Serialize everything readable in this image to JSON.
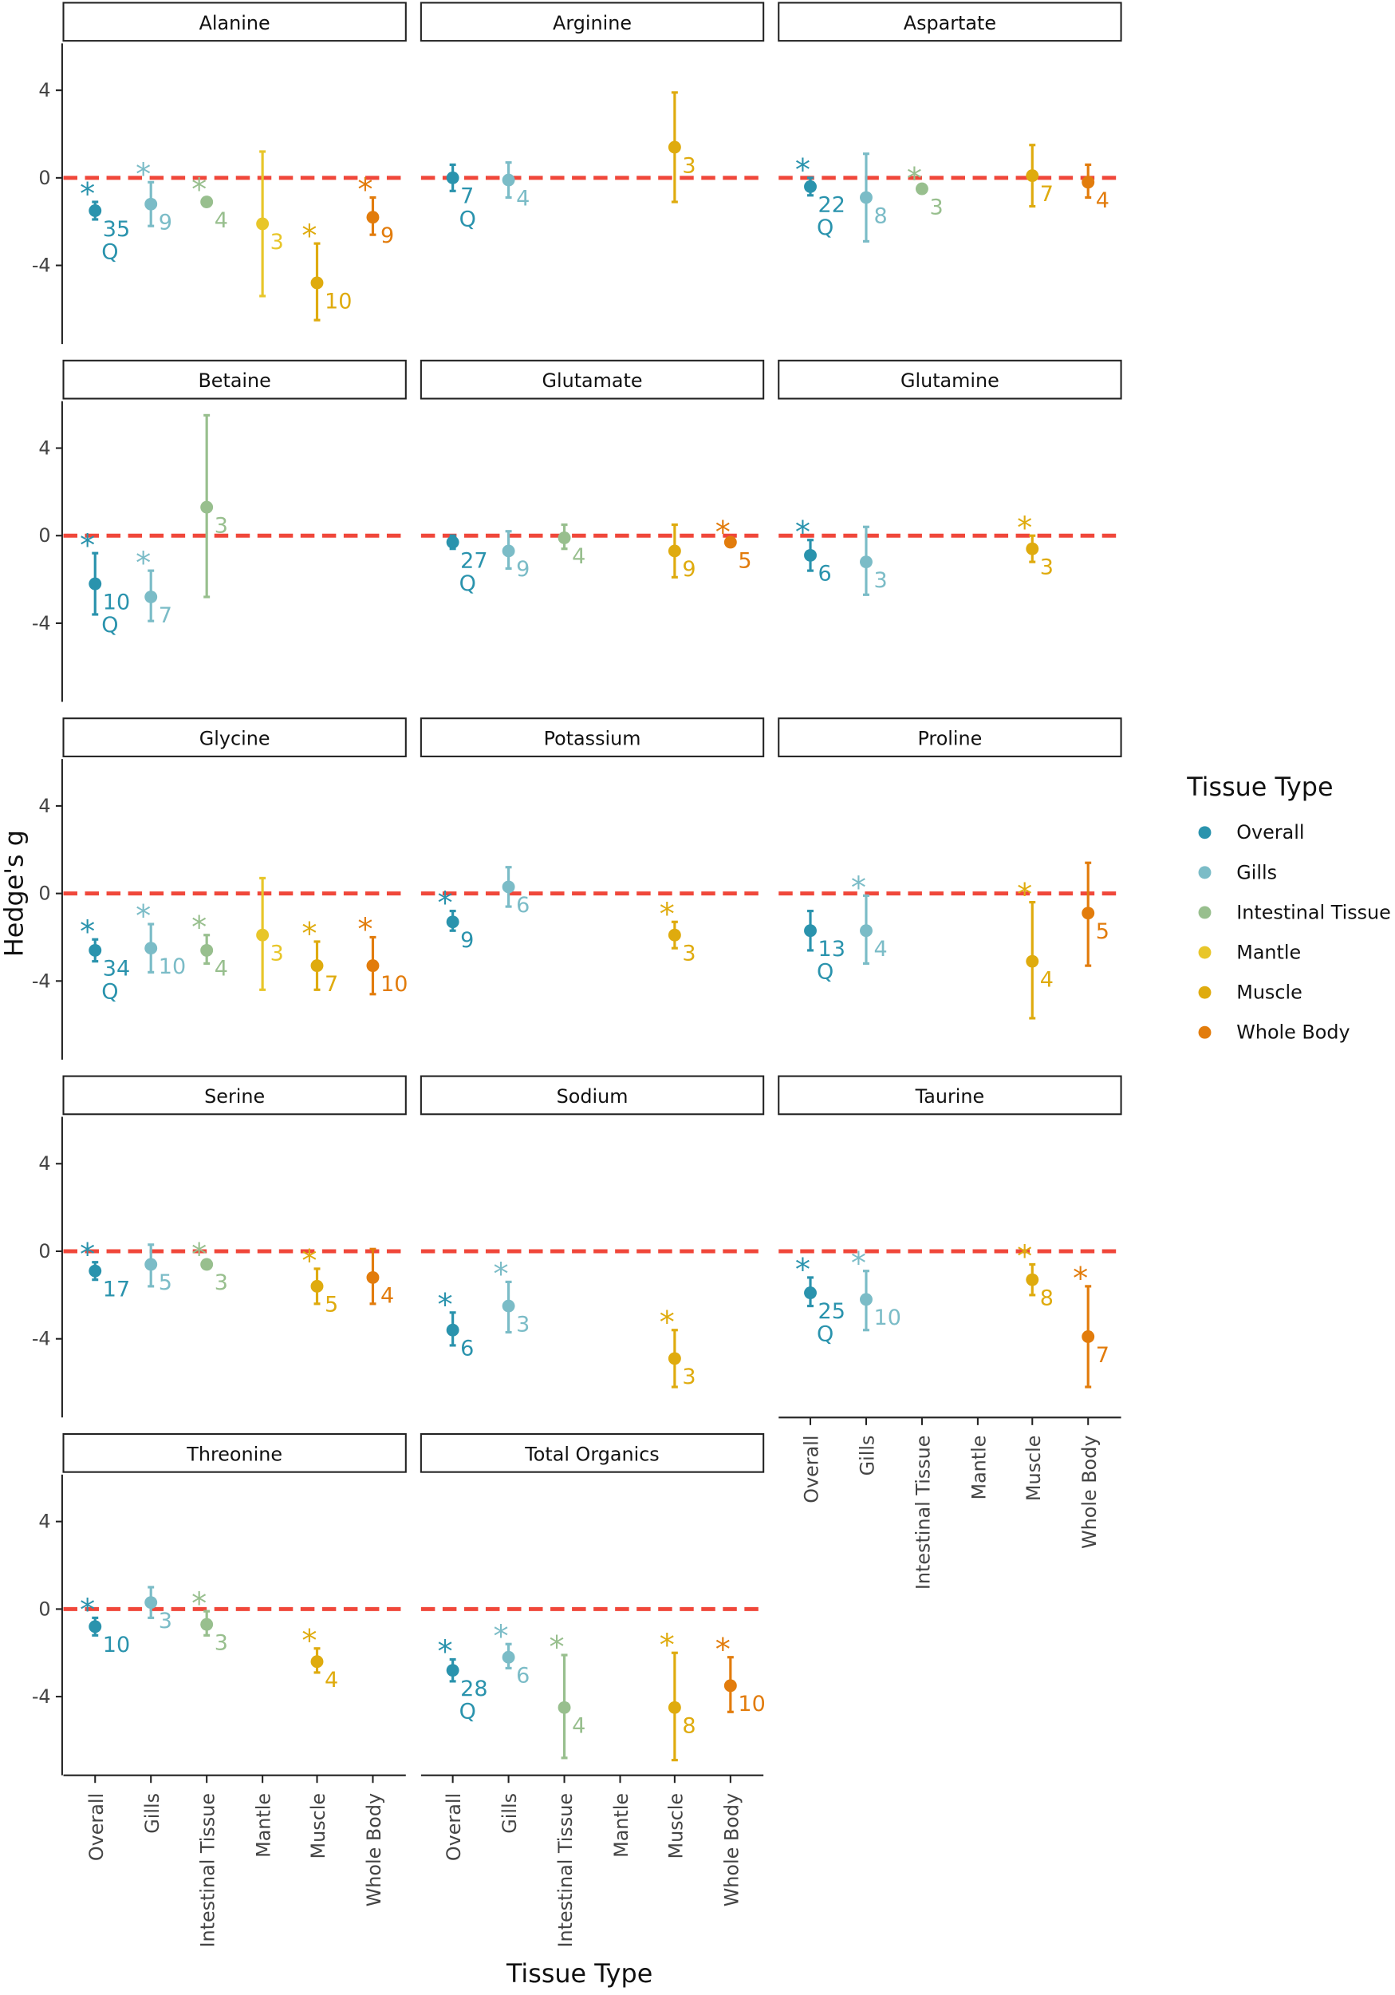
{
  "chart_data": {
    "type": "scatter",
    "subtype": "faceted forest plot with confidence intervals",
    "xlabel": "Tissue Type",
    "ylabel": "Hedge's g",
    "ylim": [
      -6.5,
      6
    ],
    "yticks": [
      4,
      0,
      -4
    ],
    "reference_line": 0,
    "categories": [
      "Overall",
      "Gills",
      "Intestinal  Tissue",
      "Mantle",
      "Muscle",
      "Whole  Body"
    ],
    "legend": {
      "title": "Tissue Type",
      "position": "right"
    },
    "colors": {
      "Overall": "#2a93ad",
      "Gills": "#7bbcc7",
      "Intestinal  Tissue": "#98bf8e",
      "Mantle": "#e8c62a",
      "Muscle": "#dfab0e",
      "Whole  Body": "#e27c0c",
      "reference": "#f0473a"
    },
    "significance_marker": "*",
    "q_marker": "Q",
    "panels": [
      {
        "title": "Alanine",
        "points": [
          {
            "cat": 0,
            "g": -1.5,
            "lo": -1.9,
            "hi": -1.1,
            "n": "35",
            "sig": true,
            "q": true
          },
          {
            "cat": 1,
            "g": -1.2,
            "lo": -2.2,
            "hi": -0.2,
            "n": "9",
            "sig": true
          },
          {
            "cat": 2,
            "g": -1.1,
            "lo": -1.3,
            "hi": -0.9,
            "n": "4",
            "sig": true
          },
          {
            "cat": 3,
            "g": -2.1,
            "lo": -5.4,
            "hi": 1.2,
            "n": "3"
          },
          {
            "cat": 4,
            "g": -4.8,
            "lo": -6.5,
            "hi": -3.0,
            "n": "10",
            "sig": true
          },
          {
            "cat": 5,
            "g": -1.8,
            "lo": -2.6,
            "hi": -0.9,
            "n": "9",
            "sig": true
          }
        ]
      },
      {
        "title": "Arginine",
        "points": [
          {
            "cat": 0,
            "g": 0.0,
            "lo": -0.6,
            "hi": 0.6,
            "n": "7",
            "q": true
          },
          {
            "cat": 1,
            "g": -0.1,
            "lo": -0.9,
            "hi": 0.7,
            "n": "4"
          },
          {
            "cat": 4,
            "g": 1.4,
            "lo": -1.1,
            "hi": 3.9,
            "n": "3"
          }
        ]
      },
      {
        "title": "Aspartate",
        "points": [
          {
            "cat": 0,
            "g": -0.4,
            "lo": -0.8,
            "hi": 0.0,
            "n": "22",
            "sig": true,
            "q": true
          },
          {
            "cat": 1,
            "g": -0.9,
            "lo": -2.9,
            "hi": 1.1,
            "n": "8"
          },
          {
            "cat": 2,
            "g": -0.5,
            "lo": -0.6,
            "hi": -0.4,
            "n": "3",
            "sig": true
          },
          {
            "cat": 4,
            "g": 0.1,
            "lo": -1.3,
            "hi": 1.5,
            "n": "7"
          },
          {
            "cat": 5,
            "g": -0.2,
            "lo": -0.9,
            "hi": 0.6,
            "n": "4"
          }
        ]
      },
      {
        "title": "Betaine",
        "points": [
          {
            "cat": 0,
            "g": -2.2,
            "lo": -3.6,
            "hi": -0.8,
            "n": "10",
            "sig": true,
            "q": true
          },
          {
            "cat": 1,
            "g": -2.8,
            "lo": -3.9,
            "hi": -1.6,
            "n": "7",
            "sig": true
          },
          {
            "cat": 2,
            "g": 1.3,
            "lo": -2.8,
            "hi": 5.5,
            "n": "3"
          }
        ]
      },
      {
        "title": "Glutamate",
        "points": [
          {
            "cat": 0,
            "g": -0.3,
            "lo": -0.6,
            "hi": 0.0,
            "n": "27",
            "q": true
          },
          {
            "cat": 1,
            "g": -0.7,
            "lo": -1.5,
            "hi": 0.2,
            "n": "9"
          },
          {
            "cat": 2,
            "g": -0.1,
            "lo": -0.6,
            "hi": 0.5,
            "n": "4"
          },
          {
            "cat": 4,
            "g": -0.7,
            "lo": -1.9,
            "hi": 0.5,
            "n": "9"
          },
          {
            "cat": 5,
            "g": -0.3,
            "lo": -0.4,
            "hi": -0.2,
            "n": "5",
            "sig": true
          }
        ]
      },
      {
        "title": "Glutamine",
        "points": [
          {
            "cat": 0,
            "g": -0.9,
            "lo": -1.6,
            "hi": -0.2,
            "n": "6",
            "sig": true
          },
          {
            "cat": 1,
            "g": -1.2,
            "lo": -2.7,
            "hi": 0.4,
            "n": "3"
          },
          {
            "cat": 4,
            "g": -0.6,
            "lo": -1.2,
            "hi": 0.0,
            "n": "3",
            "sig": true
          }
        ]
      },
      {
        "title": "Glycine",
        "points": [
          {
            "cat": 0,
            "g": -2.6,
            "lo": -3.1,
            "hi": -2.1,
            "n": "34",
            "sig": true,
            "q": true
          },
          {
            "cat": 1,
            "g": -2.5,
            "lo": -3.6,
            "hi": -1.4,
            "n": "10",
            "sig": true
          },
          {
            "cat": 2,
            "g": -2.6,
            "lo": -3.2,
            "hi": -1.9,
            "n": "4",
            "sig": true
          },
          {
            "cat": 3,
            "g": -1.9,
            "lo": -4.4,
            "hi": 0.7,
            "n": "3"
          },
          {
            "cat": 4,
            "g": -3.3,
            "lo": -4.4,
            "hi": -2.2,
            "n": "7",
            "sig": true
          },
          {
            "cat": 5,
            "g": -3.3,
            "lo": -4.6,
            "hi": -2.0,
            "n": "10",
            "sig": true
          }
        ]
      },
      {
        "title": "Potassium",
        "points": [
          {
            "cat": 0,
            "g": -1.3,
            "lo": -1.7,
            "hi": -0.8,
            "n": "9",
            "sig": true
          },
          {
            "cat": 1,
            "g": 0.3,
            "lo": -0.6,
            "hi": 1.2,
            "n": "6"
          },
          {
            "cat": 4,
            "g": -1.9,
            "lo": -2.5,
            "hi": -1.3,
            "n": "3",
            "sig": true
          }
        ]
      },
      {
        "title": "Proline",
        "points": [
          {
            "cat": 0,
            "g": -1.7,
            "lo": -2.6,
            "hi": -0.8,
            "n": "13",
            "q": true
          },
          {
            "cat": 1,
            "g": -1.7,
            "lo": -3.2,
            "hi": -0.1,
            "n": "4",
            "sig": true
          },
          {
            "cat": 4,
            "g": -3.1,
            "lo": -5.7,
            "hi": -0.4,
            "n": "4",
            "sig": true
          },
          {
            "cat": 5,
            "g": -0.9,
            "lo": -3.3,
            "hi": 1.4,
            "n": "5"
          }
        ]
      },
      {
        "title": "Serine",
        "points": [
          {
            "cat": 0,
            "g": -0.9,
            "lo": -1.3,
            "hi": -0.5,
            "n": "17",
            "sig": true
          },
          {
            "cat": 1,
            "g": -0.6,
            "lo": -1.6,
            "hi": 0.3,
            "n": "5"
          },
          {
            "cat": 2,
            "g": -0.6,
            "lo": -0.7,
            "hi": -0.5,
            "n": "3",
            "sig": true
          },
          {
            "cat": 4,
            "g": -1.6,
            "lo": -2.4,
            "hi": -0.8,
            "n": "5",
            "sig": true
          },
          {
            "cat": 5,
            "g": -1.2,
            "lo": -2.4,
            "hi": 0.1,
            "n": "4"
          }
        ]
      },
      {
        "title": "Sodium",
        "points": [
          {
            "cat": 0,
            "g": -3.6,
            "lo": -4.3,
            "hi": -2.8,
            "n": "6",
            "sig": true
          },
          {
            "cat": 1,
            "g": -2.5,
            "lo": -3.7,
            "hi": -1.4,
            "n": "3",
            "sig": true
          },
          {
            "cat": 4,
            "g": -4.9,
            "lo": -6.2,
            "hi": -3.6,
            "n": "3",
            "sig": true
          }
        ]
      },
      {
        "title": "Taurine",
        "points": [
          {
            "cat": 0,
            "g": -1.9,
            "lo": -2.5,
            "hi": -1.2,
            "n": "25",
            "sig": true,
            "q": true
          },
          {
            "cat": 1,
            "g": -2.2,
            "lo": -3.6,
            "hi": -0.9,
            "n": "10",
            "sig": true
          },
          {
            "cat": 4,
            "g": -1.3,
            "lo": -2.0,
            "hi": -0.6,
            "n": "8",
            "sig": true
          },
          {
            "cat": 5,
            "g": -3.9,
            "lo": -6.2,
            "hi": -1.6,
            "n": "7",
            "sig": true
          }
        ]
      },
      {
        "title": "Threonine",
        "points": [
          {
            "cat": 0,
            "g": -0.8,
            "lo": -1.2,
            "hi": -0.4,
            "n": "10",
            "sig": true
          },
          {
            "cat": 1,
            "g": 0.3,
            "lo": -0.4,
            "hi": 1.0,
            "n": "3"
          },
          {
            "cat": 2,
            "g": -0.7,
            "lo": -1.2,
            "hi": -0.1,
            "n": "3",
            "sig": true
          },
          {
            "cat": 4,
            "g": -2.4,
            "lo": -2.9,
            "hi": -1.8,
            "n": "4",
            "sig": true
          }
        ]
      },
      {
        "title": "Total Organics",
        "points": [
          {
            "cat": 0,
            "g": -2.8,
            "lo": -3.3,
            "hi": -2.3,
            "n": "28",
            "sig": true,
            "q": true
          },
          {
            "cat": 1,
            "g": -2.2,
            "lo": -2.7,
            "hi": -1.6,
            "n": "6",
            "sig": true
          },
          {
            "cat": 2,
            "g": -4.5,
            "lo": -6.8,
            "hi": -2.1,
            "n": "4",
            "sig": true
          },
          {
            "cat": 4,
            "g": -4.5,
            "lo": -6.9,
            "hi": -2.0,
            "n": "8",
            "sig": true
          },
          {
            "cat": 5,
            "g": -3.5,
            "lo": -4.7,
            "hi": -2.2,
            "n": "10",
            "sig": true
          }
        ]
      }
    ]
  }
}
